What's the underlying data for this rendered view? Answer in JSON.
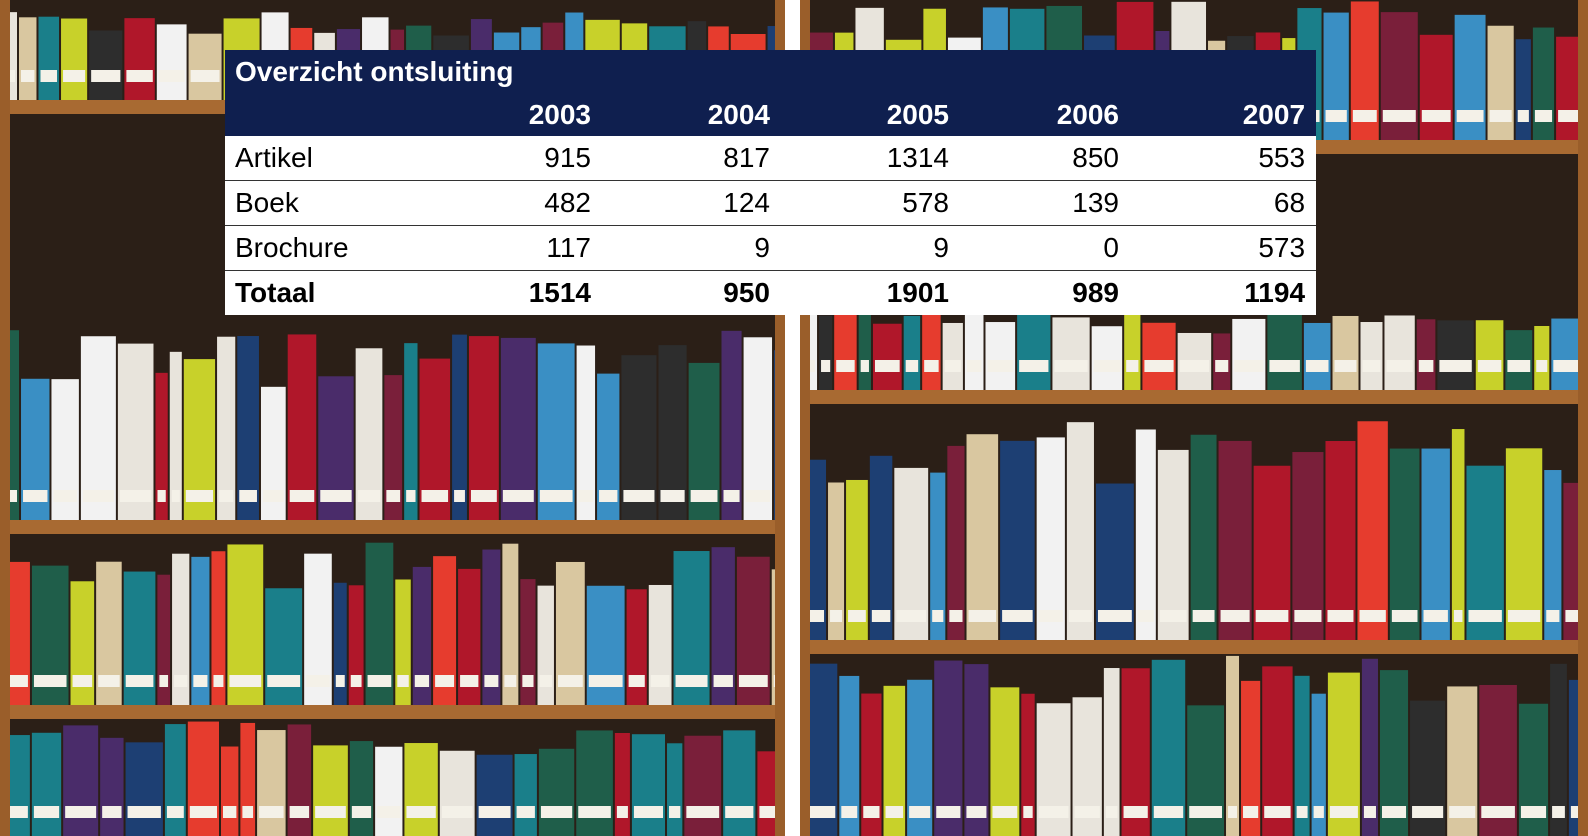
{
  "table": {
    "title": "Overzicht ontsluiting",
    "columns": [
      "2003",
      "2004",
      "2005",
      "2006",
      "2007"
    ],
    "rows": [
      {
        "label": "Artikel",
        "values": [
          915,
          817,
          1314,
          850,
          553
        ]
      },
      {
        "label": "Boek",
        "values": [
          482,
          124,
          578,
          139,
          68
        ]
      },
      {
        "label": "Brochure",
        "values": [
          117,
          9,
          9,
          0,
          573
        ]
      },
      {
        "label": "Totaal",
        "values": [
          1514,
          950,
          1901,
          989,
          1194
        ]
      }
    ]
  }
}
